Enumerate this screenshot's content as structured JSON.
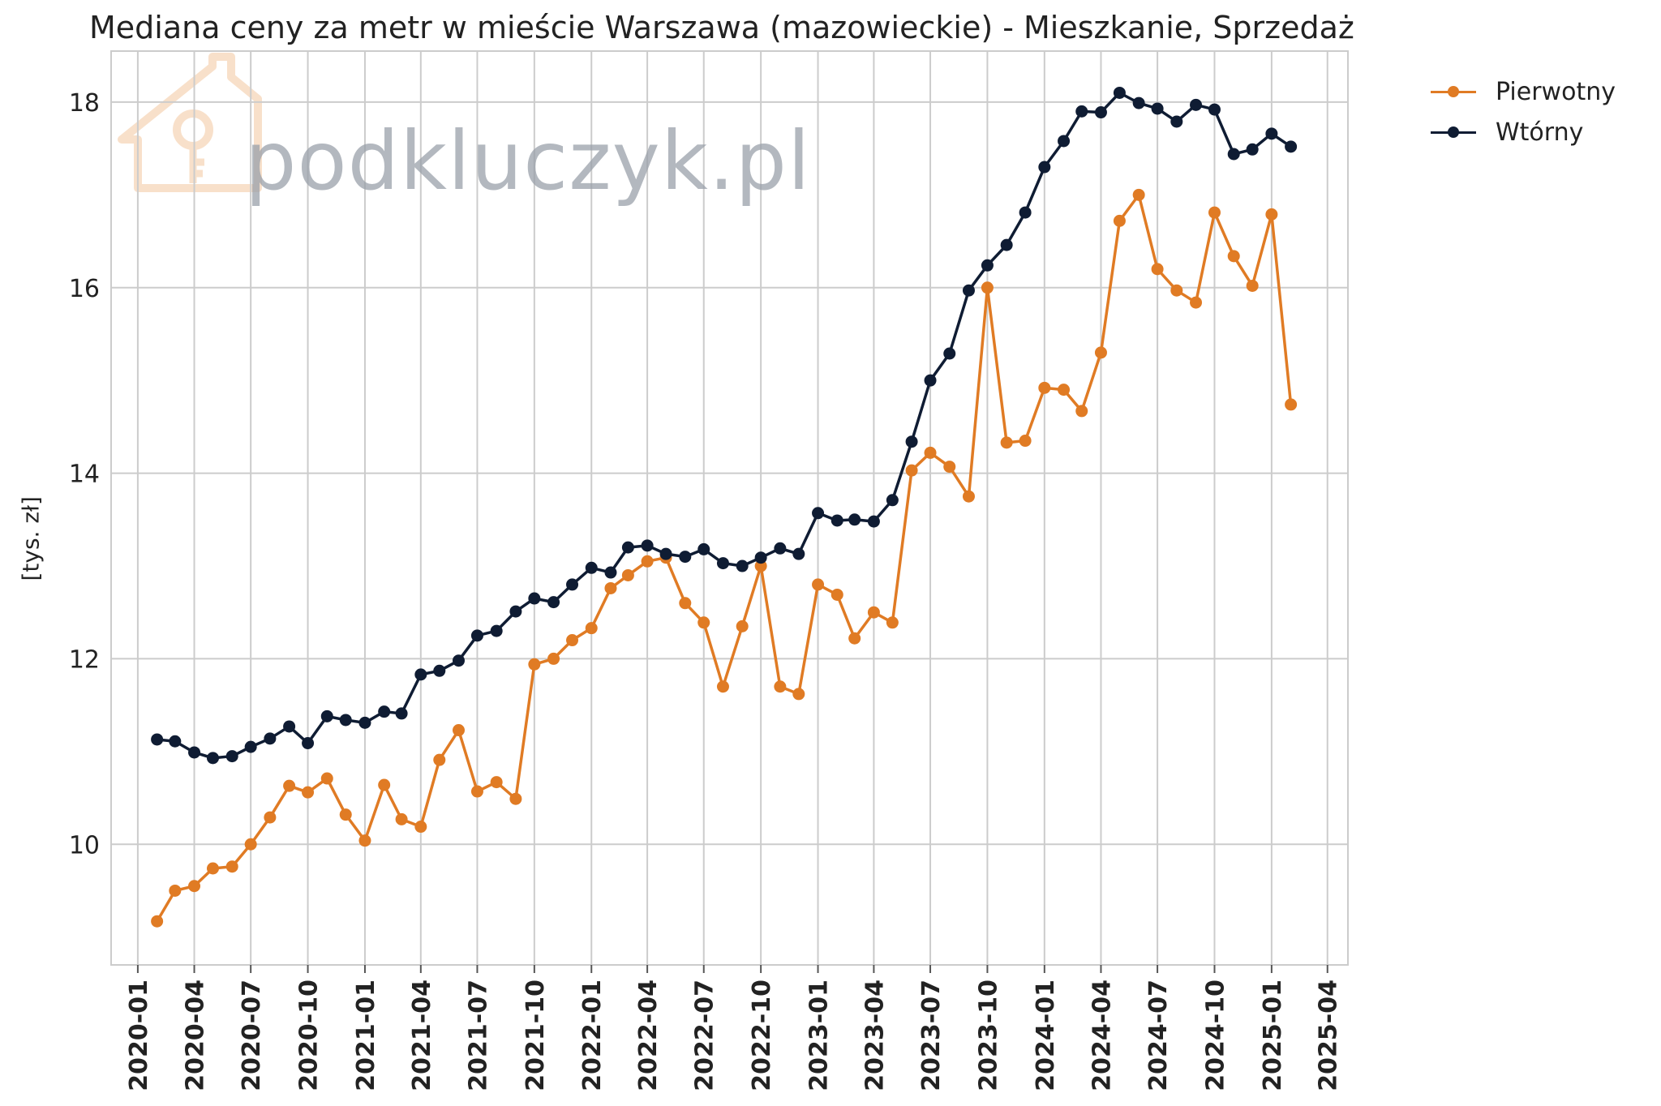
{
  "chart_data": {
    "type": "line",
    "title": "Mediana ceny za metr w mieście Warszawa (mazowieckie) - Mieszkanie, Sprzedaż",
    "xlabel": "",
    "ylabel": "[tys. zł]",
    "ylim": [
      8.7,
      18.55
    ],
    "y_ticks": [
      10,
      12,
      14,
      16,
      18
    ],
    "x_ticks": [
      "2020-01",
      "2020-04",
      "2020-07",
      "2020-10",
      "2021-01",
      "2021-04",
      "2021-07",
      "2021-10",
      "2022-01",
      "2022-04",
      "2022-07",
      "2022-10",
      "2023-01",
      "2023-04",
      "2023-07",
      "2023-10",
      "2024-01",
      "2024-04",
      "2024-07",
      "2024-10",
      "2025-01",
      "2025-04"
    ],
    "x_range": [
      "2019-11-19",
      "2025-05-04"
    ],
    "grid": true,
    "legend_position": "outside-top-right",
    "dates": [
      "2020-02",
      "2020-03",
      "2020-04",
      "2020-05",
      "2020-06",
      "2020-07",
      "2020-08",
      "2020-09",
      "2020-10",
      "2020-11",
      "2020-12",
      "2021-01",
      "2021-02",
      "2021-03",
      "2021-04",
      "2021-05",
      "2021-06",
      "2021-07",
      "2021-08",
      "2021-09",
      "2021-10",
      "2021-11",
      "2021-12",
      "2022-01",
      "2022-02",
      "2022-03",
      "2022-04",
      "2022-05",
      "2022-06",
      "2022-07",
      "2022-08",
      "2022-09",
      "2022-10",
      "2022-11",
      "2022-12",
      "2023-01",
      "2023-02",
      "2023-03",
      "2023-04",
      "2023-05",
      "2023-06",
      "2023-07",
      "2023-08",
      "2023-09",
      "2023-10",
      "2023-11",
      "2023-12",
      "2024-01",
      "2024-02",
      "2024-03",
      "2024-04",
      "2024-05",
      "2024-06",
      "2024-07",
      "2024-08",
      "2024-09",
      "2024-10",
      "2024-11",
      "2024-12",
      "2025-01",
      "2025-02"
    ],
    "series": [
      {
        "name": "Pierwotny",
        "color": "#e07b24",
        "values": [
          9.17,
          9.5,
          9.55,
          9.74,
          9.76,
          10.0,
          10.29,
          10.63,
          10.56,
          10.71,
          10.32,
          10.04,
          10.64,
          10.27,
          10.19,
          10.91,
          11.23,
          10.57,
          10.67,
          10.49,
          11.94,
          12.0,
          12.2,
          12.33,
          12.76,
          12.9,
          13.05,
          13.09,
          12.6,
          12.39,
          11.7,
          12.35,
          13.0,
          11.7,
          11.62,
          12.8,
          12.69,
          12.22,
          12.5,
          12.39,
          14.03,
          14.22,
          14.07,
          13.75,
          16.0,
          14.33,
          14.35,
          14.92,
          14.9,
          14.67,
          15.3,
          16.72,
          17.0,
          16.2,
          15.97,
          15.84,
          16.81,
          16.34,
          16.02,
          16.79,
          14.74
        ]
      },
      {
        "name": "Wtórny",
        "color": "#0f1c33",
        "values": [
          11.13,
          11.11,
          10.99,
          10.93,
          10.95,
          11.05,
          11.14,
          11.27,
          11.09,
          11.38,
          11.34,
          11.31,
          11.43,
          11.41,
          11.83,
          11.87,
          11.98,
          12.25,
          12.3,
          12.51,
          12.65,
          12.61,
          12.8,
          12.98,
          12.93,
          13.2,
          13.22,
          13.13,
          13.1,
          13.18,
          13.03,
          13.0,
          13.09,
          13.19,
          13.13,
          13.57,
          13.49,
          13.5,
          13.48,
          13.71,
          14.34,
          15.0,
          15.29,
          15.97,
          16.24,
          16.46,
          16.81,
          17.3,
          17.58,
          17.9,
          17.89,
          18.1,
          17.99,
          17.93,
          17.79,
          17.97,
          17.92,
          17.44,
          17.49,
          17.66,
          17.52
        ]
      }
    ]
  },
  "watermark": {
    "text": "podkluczyk.pl",
    "icon": "house-key-icon",
    "house_color": "#f3c79f",
    "text_color": "#9aa1aa"
  }
}
